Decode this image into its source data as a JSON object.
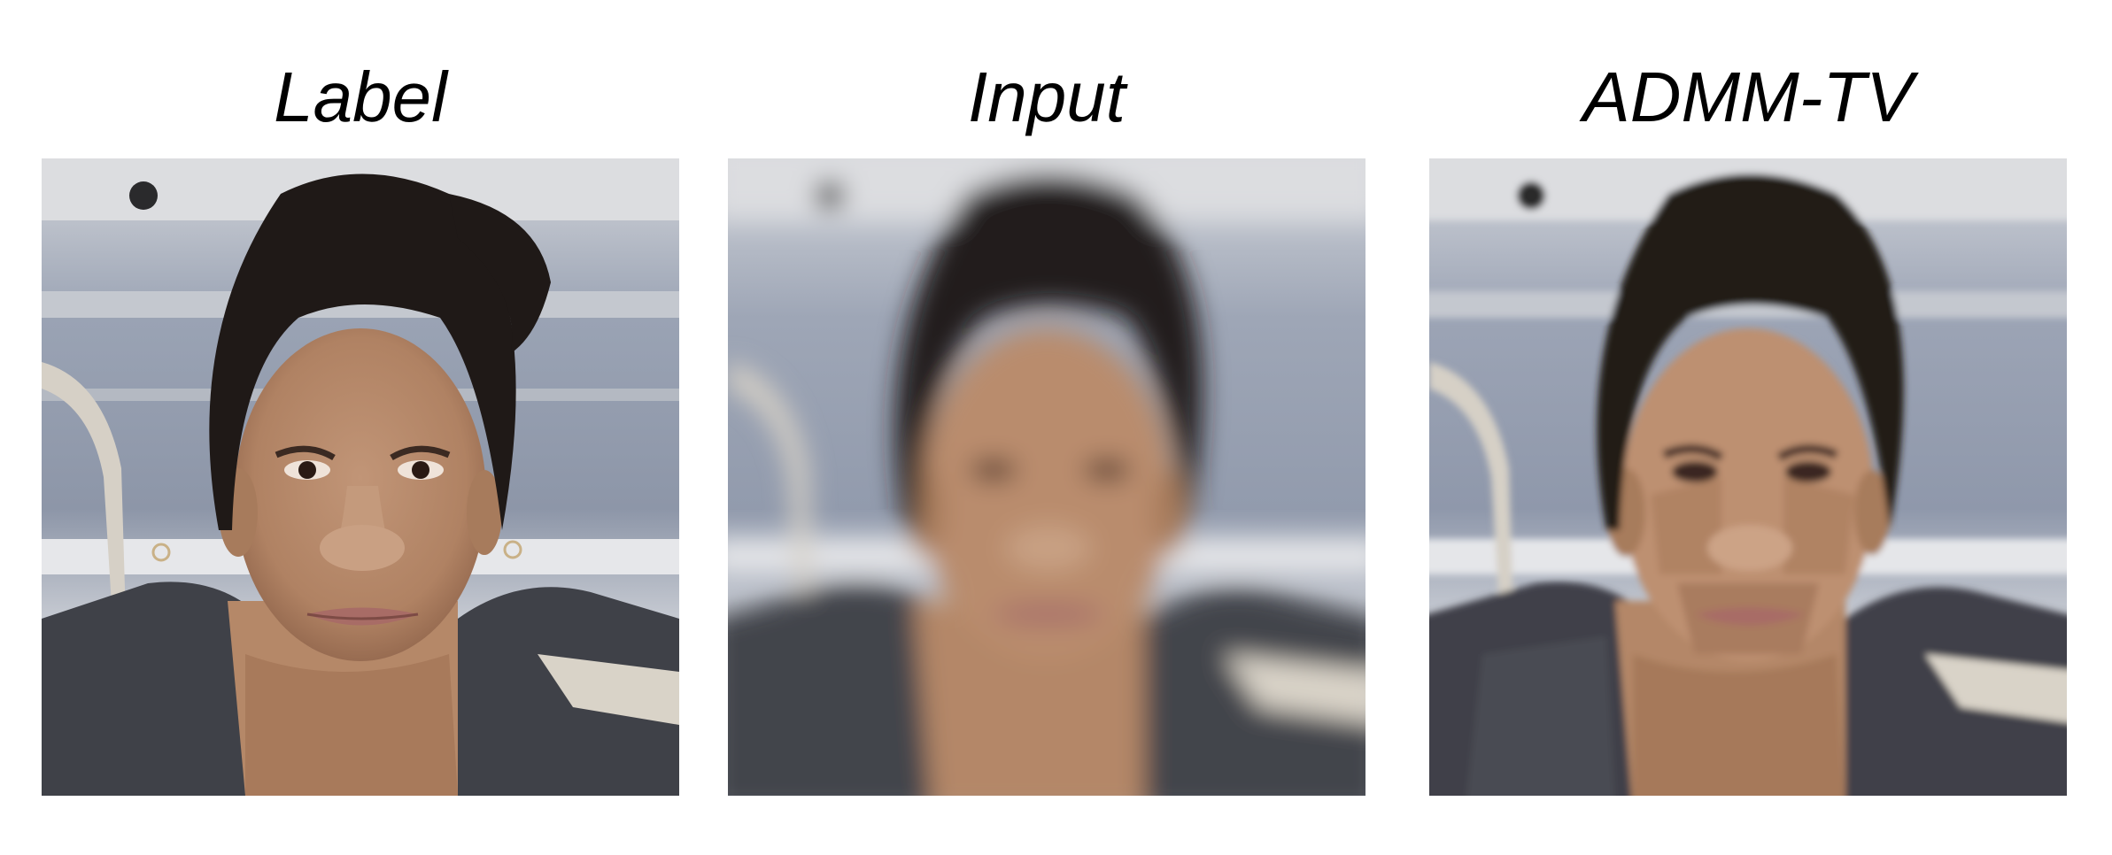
{
  "figure": {
    "panels": [
      {
        "id": "label",
        "title": "Label",
        "rendering": "sharp"
      },
      {
        "id": "input",
        "title": "Input",
        "rendering": "blurred"
      },
      {
        "id": "admm",
        "title": "ADMM-TV",
        "rendering": "piecewise-smooth"
      }
    ]
  },
  "colors": {
    "background_top": "#c9ccd2",
    "background_mid": "#8d96a8",
    "background_low": "#b7bcc6",
    "wall_light": "#e6e6e8",
    "skin": "#b58868",
    "skin_shadow": "#8e634a",
    "hair": "#1f1917",
    "shirt": "#3f4148",
    "lips": "#a86c66",
    "chair": "#d6d0c6"
  }
}
